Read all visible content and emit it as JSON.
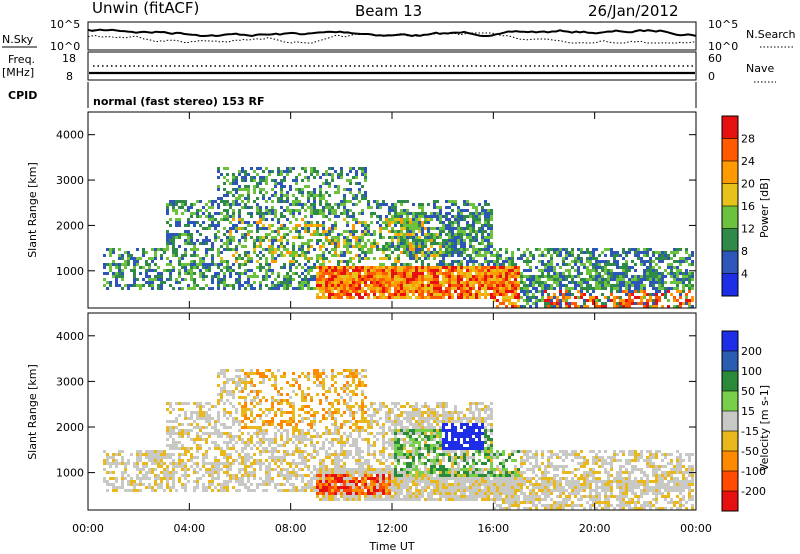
{
  "header": {
    "station": "Unwin (fitACF)",
    "beam": "Beam 13",
    "date": "26/Jan/2012"
  },
  "noise_panel": {
    "left_label": "N.Sky",
    "left_ticks": [
      "10^5",
      "10^0"
    ],
    "right_ticks": [
      "10^5",
      "10^0"
    ],
    "right_label": "N.Search"
  },
  "freq_panel": {
    "left_label_1": "Freq.",
    "left_label_2": "[MHz]",
    "left_ticks": [
      "18",
      "8"
    ],
    "right_ticks": [
      "60",
      "0"
    ],
    "right_label": "Nave"
  },
  "cpid_panel": {
    "left_label": "CPID",
    "mode_text": "normal (fast stereo) 153 RF"
  },
  "colors": {
    "power": [
      "#1e2ee6",
      "#2e55b8",
      "#2f8a4a",
      "#6cc23c",
      "#e6c21a",
      "#ff9a00",
      "#ff5a00",
      "#e61010"
    ],
    "velocity": [
      "#1e2ee6",
      "#2a5db0",
      "#2a8a3a",
      "#78d04a",
      "#c8c8c4",
      "#e8b81c",
      "#ff8a00",
      "#ff4a00",
      "#e61010"
    ]
  },
  "chart_data": [
    {
      "type": "heatmap",
      "quantity": "Power",
      "xlabel": "Time UT",
      "ylabel": "Slant Range [km]",
      "colorbar_label": "Power [dB]",
      "x_ticks": [
        "00:00",
        "04:00",
        "08:00",
        "12:00",
        "16:00",
        "20:00",
        "00:00"
      ],
      "x_range_hours": [
        0,
        24
      ],
      "ylim": [
        180,
        4500
      ],
      "y_ticks": [
        "1000",
        "2000",
        "3000",
        "4000"
      ],
      "y_tick_values": [
        1000,
        2000,
        3000,
        4000
      ],
      "colorbar_ticks": [
        "4",
        "8",
        "12",
        "16",
        "20",
        "24",
        "28"
      ],
      "colorbar_range": [
        0,
        32
      ]
    },
    {
      "type": "heatmap",
      "quantity": "Velocity",
      "xlabel": "Time UT",
      "ylabel": "Slant Range [km]",
      "colorbar_label": "Velocity [m s-1]",
      "x_ticks": [
        "00:00",
        "04:00",
        "08:00",
        "12:00",
        "16:00",
        "20:00",
        "00:00"
      ],
      "x_range_hours": [
        0,
        24
      ],
      "ylim": [
        180,
        4500
      ],
      "y_ticks": [
        "1000",
        "2000",
        "3000",
        "4000"
      ],
      "y_tick_values": [
        1000,
        2000,
        3000,
        4000
      ],
      "colorbar_ticks": [
        "200",
        "100",
        "50",
        "15",
        "-15",
        "-50",
        "-100",
        "-200"
      ]
    }
  ]
}
